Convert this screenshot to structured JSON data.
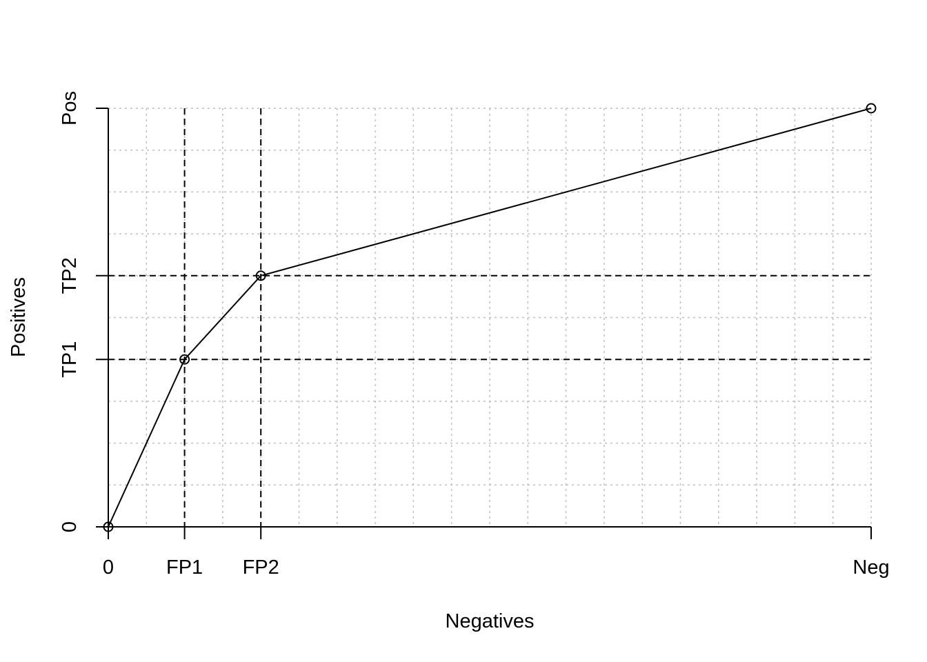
{
  "chart_data": {
    "type": "line",
    "title": "",
    "xlabel": "Negatives",
    "ylabel": "Positives",
    "xlim": [
      0,
      1
    ],
    "ylim": [
      0,
      1
    ],
    "x_ticks": [
      {
        "value": 0,
        "label": "0"
      },
      {
        "value": 0.1,
        "label": "FP1"
      },
      {
        "value": 0.2,
        "label": "FP2"
      },
      {
        "value": 1,
        "label": "Neg"
      }
    ],
    "y_ticks": [
      {
        "value": 0,
        "label": "0"
      },
      {
        "value": 0.4,
        "label": "TP1"
      },
      {
        "value": 0.6,
        "label": "TP2"
      },
      {
        "value": 1,
        "label": "Pos"
      }
    ],
    "series": [
      {
        "points": [
          {
            "x": 0,
            "y": 0
          },
          {
            "x": 0.1,
            "y": 0.4
          },
          {
            "x": 0.2,
            "y": 0.6
          },
          {
            "x": 1,
            "y": 1
          }
        ],
        "markers": "open-circle",
        "color": "#000000"
      }
    ],
    "reference_lines": {
      "vertical": [
        0.1,
        0.2
      ],
      "horizontal": [
        0.4,
        0.6
      ],
      "style": "dashed"
    },
    "grid": {
      "on": true,
      "style": "dotted",
      "color": "#bebebe",
      "x_step": 0.05,
      "y_step": 0.1
    }
  }
}
